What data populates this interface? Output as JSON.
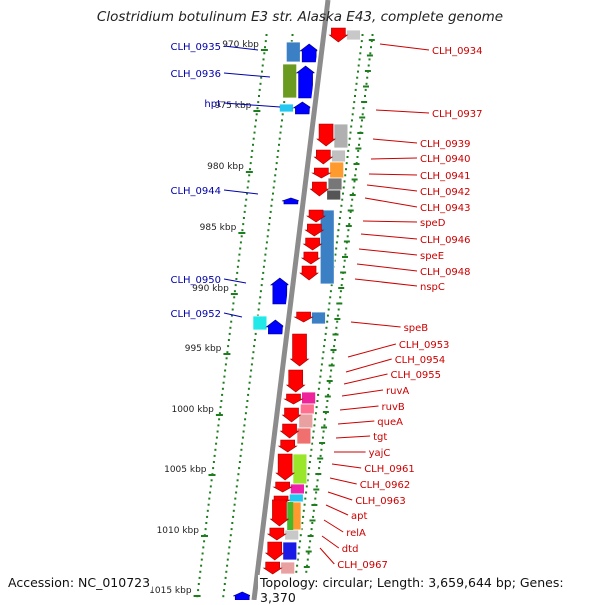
{
  "title": "Clostridium botulinum E3 str. Alaska E43, complete genome",
  "accession_text": "Accession: NC_010723",
  "topology_text": "Topology: circular; Length: 3,659,644 bp; Genes: 3,370",
  "colors": {
    "backbone": "#8c8c8c",
    "tick": "#1e7d1e",
    "forward_gene": "#0000ff",
    "reverse_gene": "#ff0000",
    "forward_label": "#0000aa",
    "reverse_label": "#cc0000"
  },
  "kbp_markers": [
    "970 kbp",
    "975 kbp",
    "980 kbp",
    "985 kbp",
    "990 kbp",
    "995 kbp",
    "1000 kbp",
    "1005 kbp",
    "1010 kbp",
    "1015 kbp"
  ],
  "left_labels": [
    "CLH_0935",
    "CLH_0936",
    "hpt",
    "CLH_0944",
    "CLH_0950",
    "CLH_0952"
  ],
  "right_labels": [
    "CLH_0934",
    "CLH_0937",
    "CLH_0939",
    "CLH_0940",
    "CLH_0941",
    "CLH_0942",
    "CLH_0943",
    "speD",
    "CLH_0946",
    "speE",
    "CLH_0948",
    "nspC",
    "speB",
    "CLH_0953",
    "CLH_0954",
    "CLH_0955",
    "ruvA",
    "ruvB",
    "queA",
    "tgt",
    "yajC",
    "CLH_0961",
    "CLH_0962",
    "CLH_0963",
    "apt",
    "relA",
    "dtd",
    "CLH_0967"
  ]
}
